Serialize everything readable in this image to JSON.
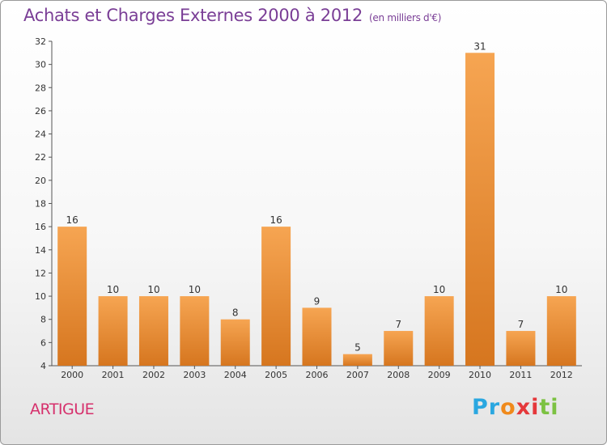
{
  "title": "Achats et Charges Externes 2000 à 2012",
  "subtitle": "(en milliers d'€)",
  "commune": "ARTIGUE",
  "logo": {
    "letters": [
      "P",
      "r",
      "o",
      "x",
      "i",
      "t",
      "i"
    ],
    "colors": [
      "#2aa7e0",
      "#2aa7e0",
      "#f08a1c",
      "#e5383b",
      "#e5383b",
      "#7cc242",
      "#7cc242"
    ]
  },
  "colors": {
    "title": "#7a3e96",
    "commune": "#d6306c",
    "bar_light": "#f6a552",
    "bar_dark": "#d6761f"
  },
  "chart_data": {
    "type": "bar",
    "categories": [
      "2000",
      "2001",
      "2002",
      "2003",
      "2004",
      "2005",
      "2006",
      "2007",
      "2008",
      "2009",
      "2010",
      "2011",
      "2012"
    ],
    "values": [
      16,
      10,
      10,
      10,
      8,
      16,
      9,
      5,
      7,
      10,
      31,
      7,
      10
    ],
    "ylim": [
      4,
      32
    ],
    "yticks": [
      4,
      6,
      8,
      10,
      12,
      14,
      16,
      18,
      20,
      22,
      24,
      26,
      28,
      30,
      32
    ],
    "grid": false
  }
}
